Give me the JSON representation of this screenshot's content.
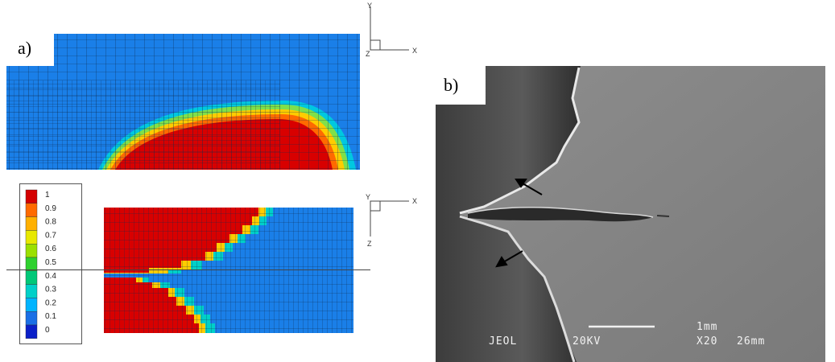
{
  "figure": {
    "panel_a_label": "a)",
    "panel_b_label": "b)"
  },
  "axes": {
    "top": {
      "y": "Y",
      "x": "X",
      "z": "Z"
    },
    "bottom": {
      "y": "Y",
      "x": "X",
      "z": "Z"
    }
  },
  "legend": {
    "ticks": [
      "1",
      "0.9",
      "0.8",
      "0.7",
      "0.6",
      "0.5",
      "0.4",
      "0.3",
      "0.2",
      "0.1",
      "0"
    ],
    "colors": [
      "#d40000",
      "#ff6a00",
      "#ffb000",
      "#e8e800",
      "#9be000",
      "#2ed12e",
      "#00c878",
      "#00d0c8",
      "#00b4ff",
      "#1a6fe6",
      "#0a1fc8"
    ]
  },
  "micrograph": {
    "label_left": "JEOL",
    "label_kv": "20KV",
    "scale_value": "1mm",
    "label_mag": "X20",
    "label_wd": "26mm"
  },
  "colors": {
    "mesh_blue": "#1a7fe8",
    "damage_red": "#d80000",
    "grid_line": "#0d2b4d"
  }
}
